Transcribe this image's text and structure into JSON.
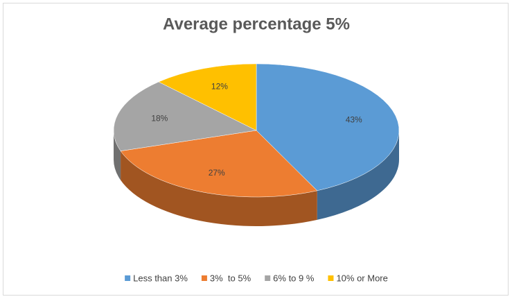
{
  "chart_data": {
    "type": "pie",
    "title": "Average percentage 5%",
    "categories": [
      "Less than 3%",
      "3%  to 5%",
      "6% to 9 %",
      "10% or More"
    ],
    "values": [
      43,
      27,
      18,
      12
    ],
    "value_labels": [
      "43%",
      "27%",
      "18%",
      "12%"
    ],
    "colors": [
      "#5b9bd5",
      "#ed7d31",
      "#a5a5a5",
      "#ffc000"
    ],
    "legend": "bottom"
  }
}
